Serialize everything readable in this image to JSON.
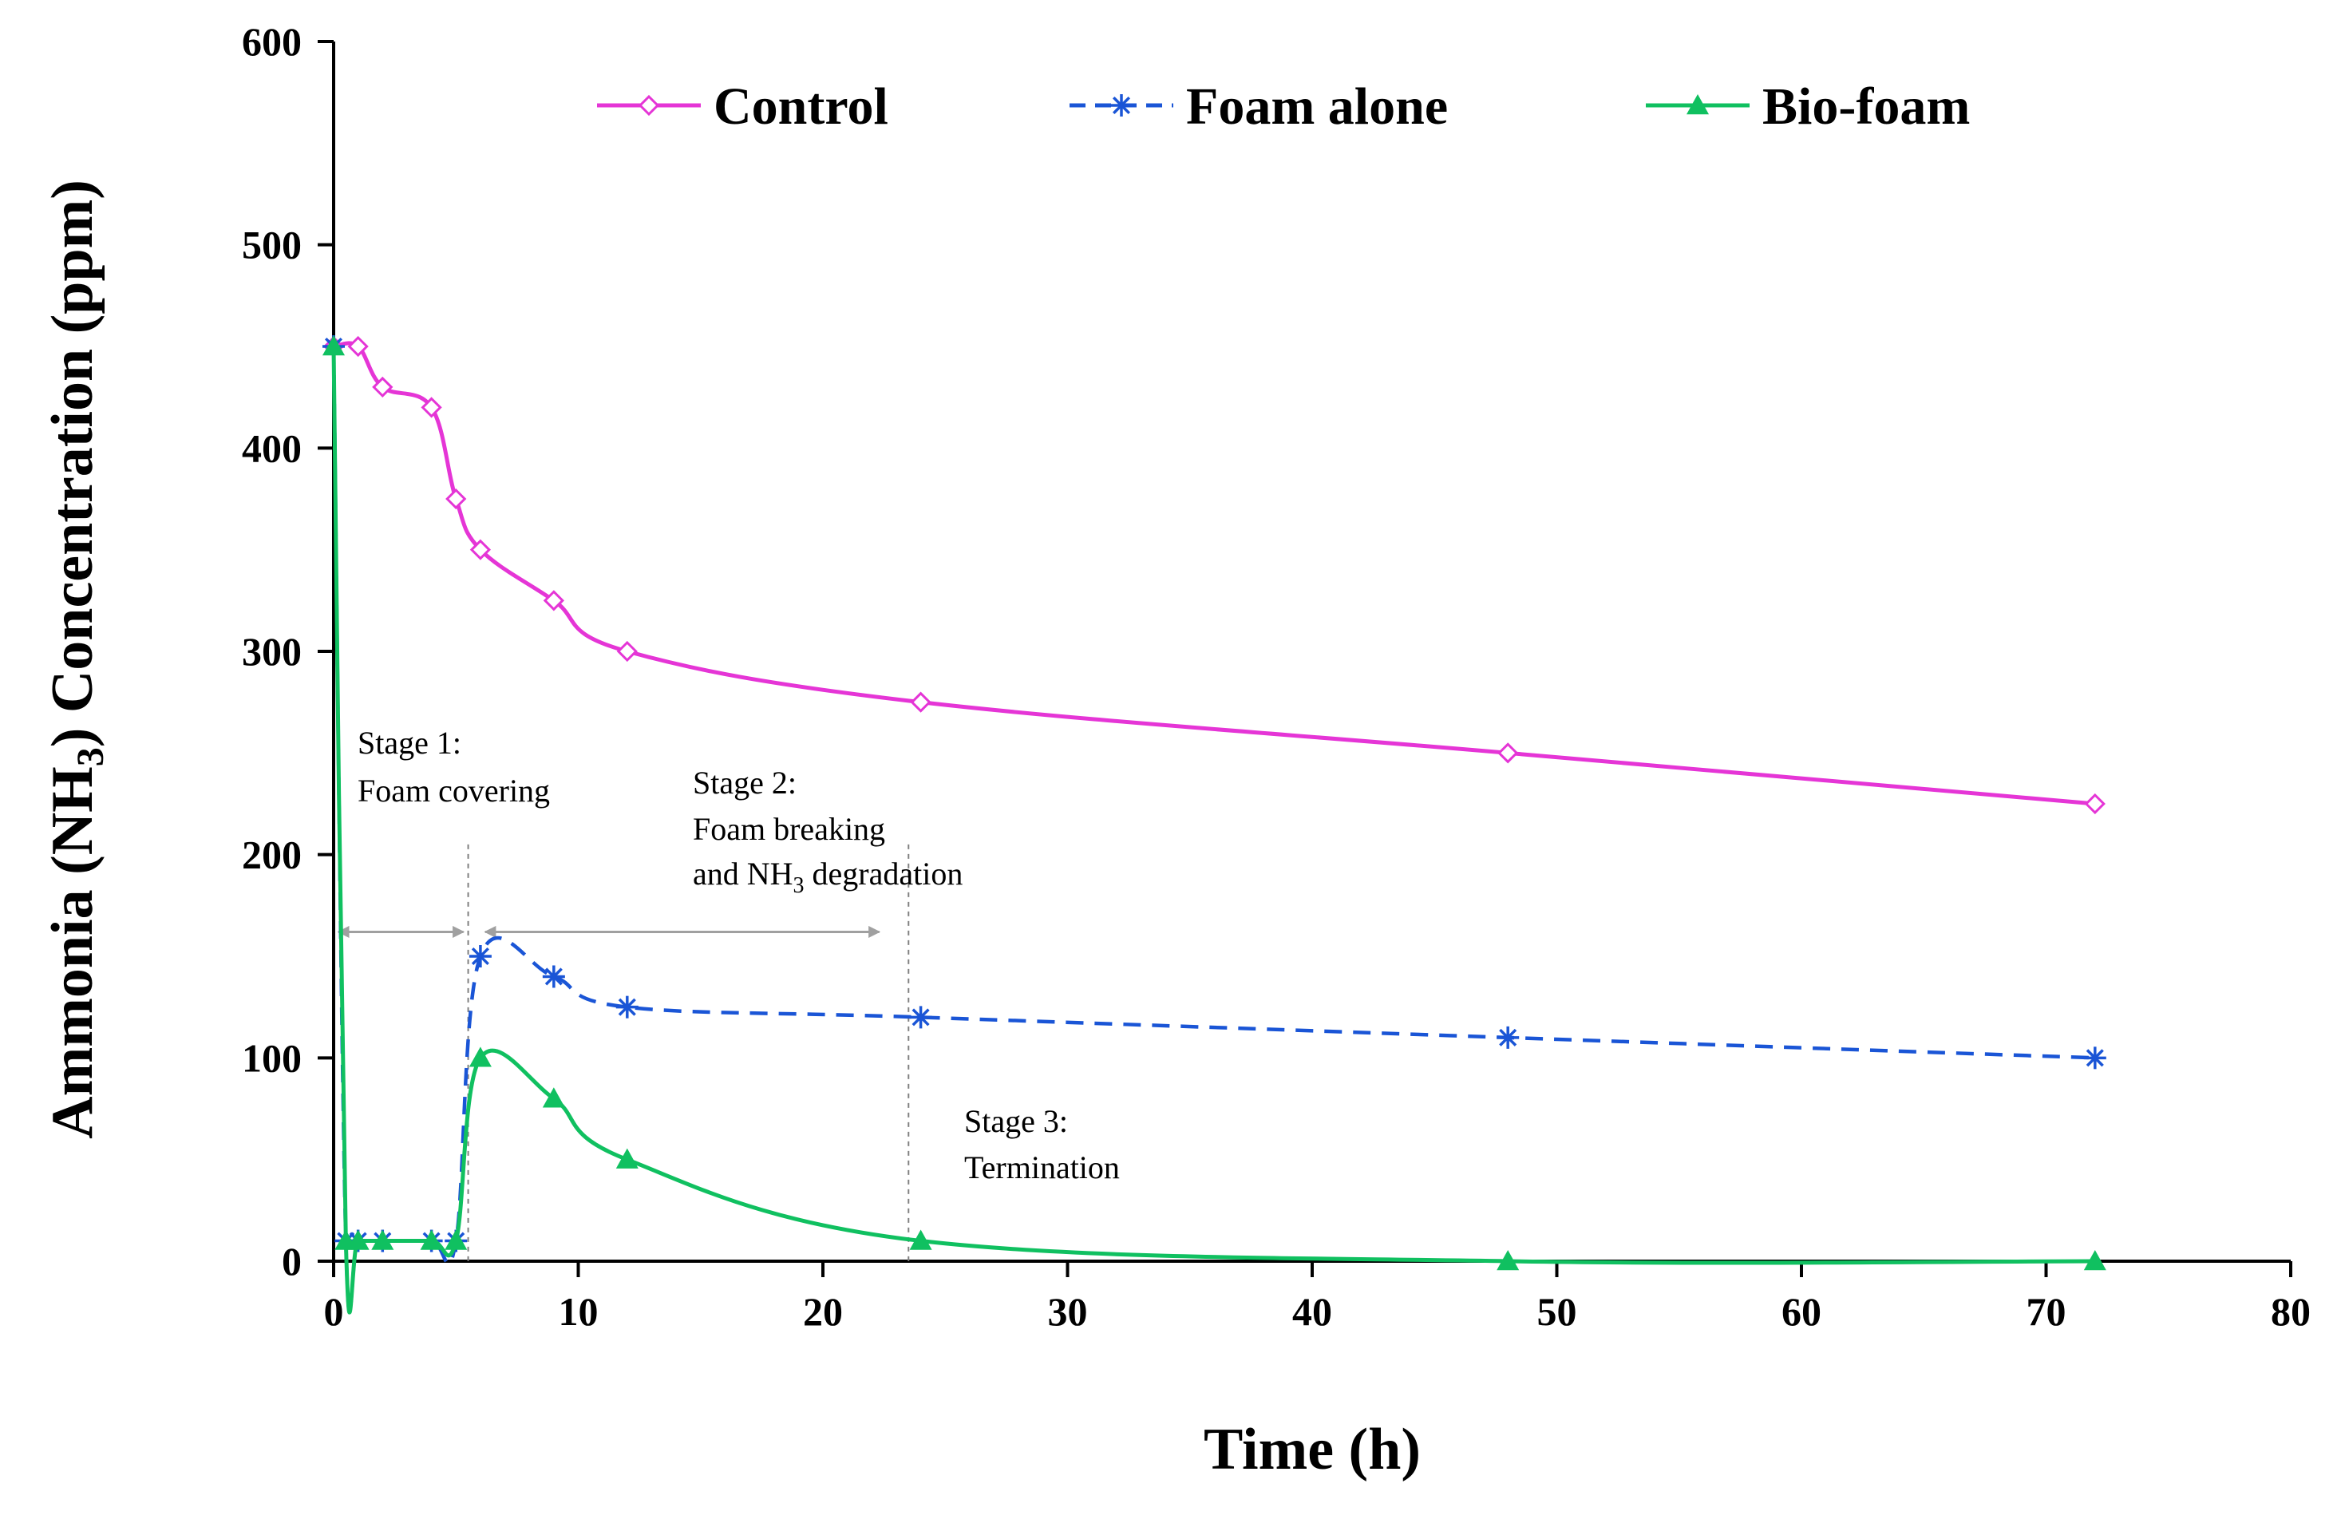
{
  "chart_data": {
    "type": "line",
    "xlabel": "Time (h)",
    "ylabel_parts": [
      "Ammonia (NH",
      "3",
      ") Concentration (ppm)"
    ],
    "xlim": [
      0,
      80
    ],
    "ylim": [
      0,
      600
    ],
    "xticks": [
      0,
      10,
      20,
      30,
      40,
      50,
      60,
      70,
      80
    ],
    "yticks": [
      0,
      100,
      200,
      300,
      400,
      500,
      600
    ],
    "grid": false,
    "legend": "top",
    "series": [
      {
        "name": "Control",
        "color": "#E535D6",
        "marker": "open-diamond",
        "dash": "solid",
        "x": [
          0,
          1,
          2,
          4,
          5,
          6,
          9,
          12,
          24,
          48,
          72
        ],
        "y": [
          450,
          450,
          430,
          420,
          375,
          350,
          325,
          300,
          275,
          250,
          225
        ]
      },
      {
        "name": "Foam alone",
        "color": "#1A55D6",
        "marker": "asterisk",
        "dash": "dashed",
        "x": [
          0,
          0.5,
          1,
          2,
          4,
          5,
          6,
          9,
          12,
          24,
          48,
          72
        ],
        "y": [
          450,
          10,
          10,
          10,
          10,
          10,
          150,
          140,
          125,
          120,
          110,
          100
        ]
      },
      {
        "name": "Bio-foam",
        "color": "#10C060",
        "marker": "filled-triangle",
        "dash": "solid",
        "x": [
          0,
          0.5,
          1,
          2,
          4,
          5,
          6,
          9,
          12,
          24,
          48,
          72
        ],
        "y": [
          450,
          10,
          10,
          10,
          10,
          10,
          100,
          80,
          50,
          10,
          0,
          0
        ]
      }
    ],
    "annotations": {
      "stage1": {
        "lines": [
          "Stage 1:",
          "Foam covering"
        ]
      },
      "stage2": {
        "line1": "Stage 2:",
        "line2": "Foam breaking",
        "line3_pre": "and NH",
        "line3_sub": "3",
        "line3_post": " degradation"
      },
      "stage3": {
        "lines": [
          "Stage 3:",
          "Termination"
        ]
      },
      "stage_boundaries_x": [
        5.5,
        23.5
      ],
      "arrows": [
        {
          "from_x": 0,
          "to_x": 5.5,
          "y": 162
        },
        {
          "from_x": 6,
          "to_x": 22.5,
          "y": 162
        }
      ],
      "arrow_color": "#A0A0A0",
      "boundary_color": "#808080"
    }
  }
}
